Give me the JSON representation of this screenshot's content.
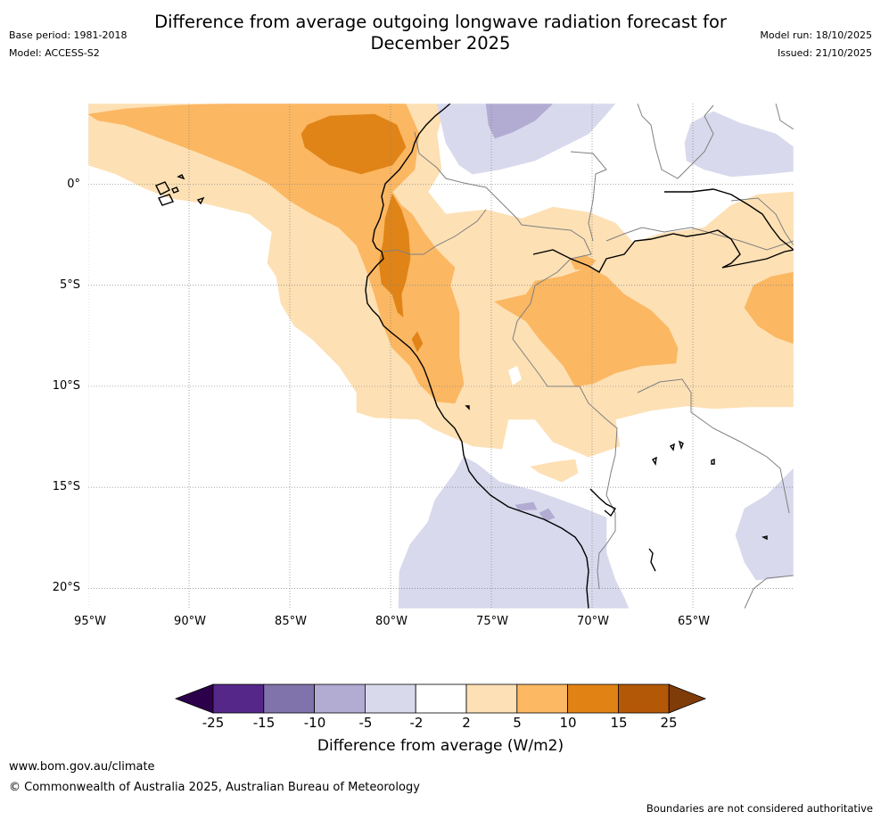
{
  "header": {
    "title_line1": "Difference from average outgoing longwave radiation forecast for",
    "title_line2": "December 2025",
    "base_period": "Base period: 1981-2018",
    "model": "Model: ACCESS-S2",
    "model_run": "Model run: 18/10/2025",
    "issued": "Issued: 21/10/2025"
  },
  "map": {
    "lon_range": [
      -95,
      -60
    ],
    "lat_range": [
      -21,
      4
    ],
    "lat_labels": [
      "0°",
      "5°S",
      "10°S",
      "15°S",
      "20°S"
    ],
    "lon_labels": [
      "95°W",
      "90°W",
      "85°W",
      "80°W",
      "75°W",
      "70°W",
      "65°W"
    ],
    "category_colors": {
      "2_to_5": "#fde0b4",
      "5_to_10": "#fbb762",
      "10_to_15": "#e08418",
      "-5_to_-2": "#d8d9ec",
      "-10_to_-5": "#b2abd2"
    },
    "coastline_color": "#000000",
    "border_color": "#808080",
    "grid_color": "#808080"
  },
  "legend": {
    "title": "Difference from average (W/m2)",
    "ticks": [
      "-25",
      "-15",
      "-10",
      "-5",
      "-2",
      "2",
      "5",
      "10",
      "15",
      "25"
    ],
    "colors": [
      "#2d004b",
      "#542788",
      "#8073ac",
      "#b2abd2",
      "#d8daeb",
      "#ffffff",
      "#fee0b6",
      "#fdb863",
      "#e08214",
      "#b35806",
      "#7f3b08"
    ]
  },
  "footer": {
    "url": "www.bom.gov.au/climate",
    "copyright": "© Commonwealth of Australia 2025, Australian Bureau of Meteorology",
    "disclaimer": "Boundaries are not considered authoritative"
  }
}
